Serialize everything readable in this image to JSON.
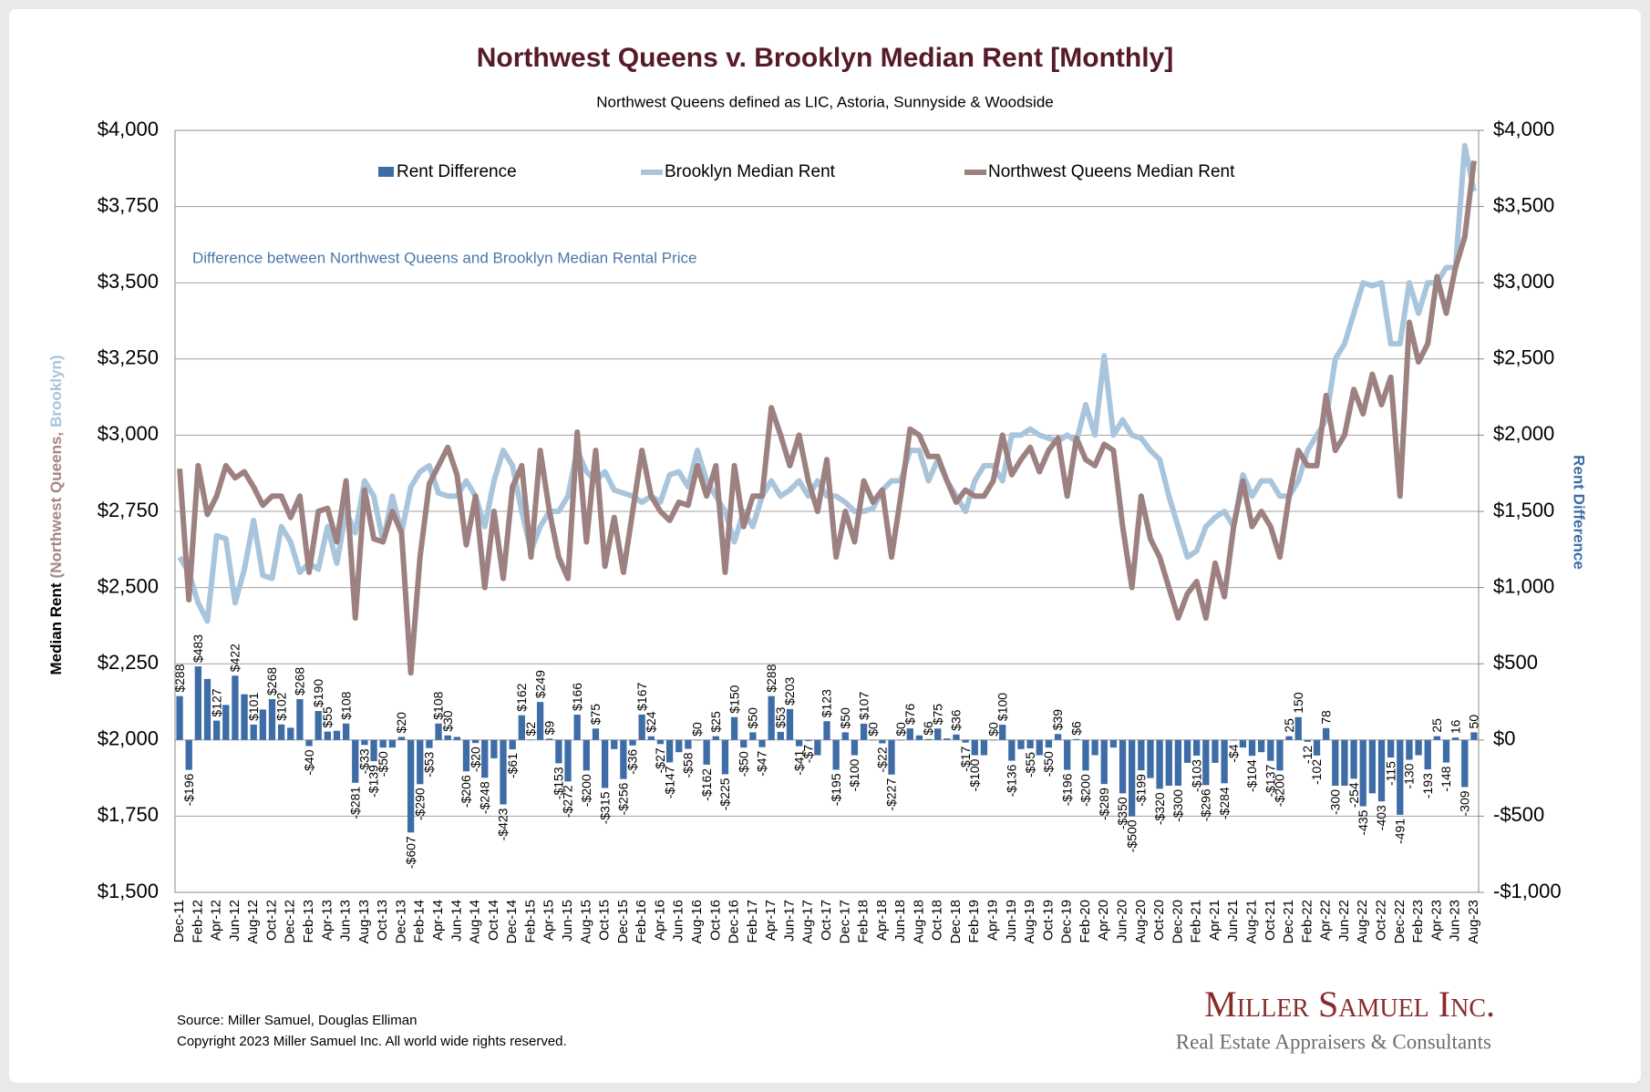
{
  "chart_data": {
    "type": "combo",
    "title": "Northwest Queens v. Brooklyn Median Rent [Monthly]",
    "subtitle": "Northwest Queens defined as LIC, Astoria, Sunnyside & Woodside",
    "annotation": "Difference between Northwest Queens and Brooklyn Median Rental Price",
    "y_label_parts": [
      "Median Rent",
      "(Northwest Queens,",
      "Brooklyn)"
    ],
    "y2_label": "Rent Difference",
    "source": "Source: Miller Samuel, Douglas Elliman",
    "copyright": "Copyright 2023 Miller Samuel Inc.  All world wide rights reserved.",
    "logo_name": "Miller Samuel Inc.",
    "logo_tagline": "Real Estate Appraisers & Consultants",
    "grid": true,
    "legend": "top",
    "ylim": [
      1500,
      4000
    ],
    "yticks": [
      {
        "value": 1500,
        "label": "$1,500"
      },
      {
        "value": 1750,
        "label": "$1,750"
      },
      {
        "value": 2000,
        "label": "$2,000"
      },
      {
        "value": 2250,
        "label": "$2,250"
      },
      {
        "value": 2500,
        "label": "$2,500"
      },
      {
        "value": 2750,
        "label": "$2,750"
      },
      {
        "value": 3000,
        "label": "$3,000"
      },
      {
        "value": 3250,
        "label": "$3,250"
      },
      {
        "value": 3500,
        "label": "$3,500"
      },
      {
        "value": 3750,
        "label": "$3,750"
      },
      {
        "value": 4000,
        "label": "$4,000"
      }
    ],
    "y2lim": [
      -1000,
      4000
    ],
    "y2ticks": [
      {
        "value": -1000,
        "label": "-$1,000"
      },
      {
        "value": -500,
        "label": "-$500"
      },
      {
        "value": 0,
        "label": "$0"
      },
      {
        "value": 500,
        "label": "$500"
      },
      {
        "value": 1000,
        "label": "$1,000"
      },
      {
        "value": 1500,
        "label": "$1,500"
      },
      {
        "value": 2000,
        "label": "$2,000"
      },
      {
        "value": 2500,
        "label": "$2,500"
      },
      {
        "value": 3000,
        "label": "$3,000"
      },
      {
        "value": 3500,
        "label": "$3,500"
      },
      {
        "value": 4000,
        "label": "$4,000"
      }
    ],
    "categories": [
      "Dec-11",
      null,
      "Feb-12",
      null,
      "Apr-12",
      null,
      "Jun-12",
      null,
      "Aug-12",
      null,
      "Oct-12",
      null,
      "Dec-12",
      null,
      "Feb-13",
      null,
      "Apr-13",
      null,
      "Jun-13",
      null,
      "Aug-13",
      null,
      "Oct-13",
      null,
      "Dec-13",
      null,
      "Feb-14",
      null,
      "Apr-14",
      null,
      "Jun-14",
      null,
      "Aug-14",
      null,
      "Oct-14",
      null,
      "Dec-14",
      null,
      "Feb-15",
      null,
      "Apr-15",
      null,
      "Jun-15",
      null,
      "Aug-15",
      null,
      "Oct-15",
      null,
      "Dec-15",
      null,
      "Feb-16",
      null,
      "Apr-16",
      null,
      "Jun-16",
      null,
      "Aug-16",
      null,
      "Oct-16",
      null,
      "Dec-16",
      null,
      "Feb-17",
      null,
      "Apr-17",
      null,
      "Jun-17",
      null,
      "Aug-17",
      null,
      "Oct-17",
      null,
      "Dec-17",
      null,
      "Feb-18",
      null,
      "Apr-18",
      null,
      "Jun-18",
      null,
      "Aug-18",
      null,
      "Oct-18",
      null,
      "Dec-18",
      null,
      "Feb-19",
      null,
      "Apr-19",
      null,
      "Jun-19",
      null,
      "Aug-19",
      null,
      "Oct-19",
      null,
      "Dec-19",
      null,
      "Feb-20",
      null,
      "Apr-20",
      null,
      "Jun-20",
      null,
      "Aug-20",
      null,
      "Oct-20",
      null,
      "Dec-20",
      null,
      "Feb-21",
      null,
      "Apr-21",
      null,
      "Jun-21",
      null,
      "Aug-21",
      null,
      "Oct-21",
      null,
      "Dec-21",
      null,
      "Feb-22",
      null,
      "Apr-22",
      null,
      "Jun-22",
      null,
      "Aug-22",
      null,
      "Oct-22",
      null,
      "Dec-22",
      null,
      "Feb-23",
      null,
      "Apr-23",
      null,
      "Jun-23",
      null,
      "Aug-23"
    ],
    "series": [
      {
        "name": "Rent Difference",
        "type": "bar",
        "axis": "y2",
        "color": "#3d6ca6",
        "values": [
          288,
          -196,
          483,
          400,
          127,
          230,
          422,
          300,
          101,
          200,
          268,
          102,
          80,
          268,
          -40,
          190,
          55,
          60,
          108,
          -281,
          -33,
          -139,
          -50,
          -50,
          20,
          -607,
          -290,
          -53,
          108,
          30,
          20,
          -206,
          -20,
          -248,
          -120,
          -423,
          -61,
          162,
          2,
          249,
          9,
          -153,
          -272,
          166,
          -200,
          75,
          -315,
          -60,
          -256,
          -36,
          167,
          24,
          -27,
          -147,
          -80,
          -58,
          0,
          -162,
          25,
          -225,
          150,
          -50,
          50,
          -47,
          288,
          53,
          203,
          -41,
          -7,
          -100,
          123,
          -195,
          50,
          -100,
          107,
          0,
          -22,
          -227,
          0,
          76,
          30,
          6,
          75,
          10,
          36,
          -17,
          -100,
          -100,
          0,
          100,
          -136,
          -60,
          -55,
          -100,
          -50,
          39,
          -196,
          6,
          -200,
          -100,
          -289,
          -50,
          -350,
          -500,
          -199,
          -250,
          -320,
          -300,
          -300,
          -150,
          -103,
          -296,
          -150,
          -284,
          -4,
          -50,
          -104,
          -80,
          -137,
          -200,
          25,
          150,
          -12,
          -102,
          78,
          -300,
          -300,
          -254,
          -435,
          -350,
          -403,
          -115,
          -491,
          -130,
          -100,
          -193,
          25,
          -148,
          16,
          -309,
          50
        ],
        "value_labels": [
          "$288",
          "-$196",
          "$483",
          null,
          "$127",
          null,
          "$422",
          null,
          "$101",
          null,
          "$268",
          "$102",
          null,
          "$268",
          "-$40",
          "$190",
          "$55",
          null,
          "$108",
          "-$281",
          "-$33",
          "-$139",
          "-$50",
          null,
          "$20",
          "-$607",
          "-$290",
          "-$53",
          "$108",
          "$30",
          null,
          "-$206",
          "-$20",
          "-$248",
          null,
          "-$423",
          "-$61",
          "$162",
          "$2",
          "$249",
          "$9",
          "-$153",
          "-$272",
          "$166",
          "-$200",
          "$75",
          "-$315",
          null,
          "-$256",
          "-$36",
          "$167",
          "$24",
          "-$27",
          "-$147",
          null,
          "-$58",
          "$0",
          "-$162",
          "$25",
          "-$225",
          "$150",
          "-$50",
          "$50",
          "-$47",
          "$288",
          "$53",
          "$203",
          "-$41",
          "-$7",
          null,
          "$123",
          "-$195",
          "$50",
          "-$100",
          "$107",
          "$0",
          "-$22",
          "-$227",
          "$0",
          "$76",
          null,
          "$6",
          "$75",
          null,
          "$36",
          "-$17",
          "-$100",
          null,
          "$0",
          "$100",
          "-$136",
          null,
          "-$55",
          null,
          "-$50",
          "$39",
          "-$196",
          "$6",
          "-$200",
          null,
          "-$289",
          null,
          "-$350",
          "-$500",
          "-$199",
          null,
          "-$320",
          null,
          "-$300",
          null,
          "-$103",
          "-$296",
          null,
          "-$284",
          "-$4",
          null,
          "-$104",
          null,
          "-$137",
          "-$200",
          "25",
          "150",
          "-12",
          "-102",
          "78",
          "-300",
          null,
          "-254",
          "-435",
          null,
          "-403",
          "-115",
          "-491",
          "-130",
          null,
          "-193",
          "25",
          "-148",
          "16",
          "-309",
          "50"
        ]
      },
      {
        "name": "Brooklyn Median Rent",
        "type": "line",
        "axis": "y",
        "color": "#a9c5dc",
        "values": [
          2600,
          2550,
          2450,
          2390,
          2670,
          2660,
          2450,
          2560,
          2720,
          2540,
          2530,
          2700,
          2650,
          2550,
          2580,
          2560,
          2700,
          2580,
          2750,
          2680,
          2850,
          2800,
          2650,
          2800,
          2680,
          2830,
          2880,
          2900,
          2810,
          2800,
          2800,
          2850,
          2800,
          2700,
          2850,
          2950,
          2900,
          2750,
          2620,
          2700,
          2750,
          2750,
          2800,
          2950,
          2880,
          2850,
          2880,
          2820,
          2810,
          2800,
          2780,
          2800,
          2780,
          2870,
          2880,
          2830,
          2950,
          2850,
          2800,
          2750,
          2650,
          2750,
          2700,
          2800,
          2850,
          2800,
          2820,
          2850,
          2800,
          2850,
          2800,
          2800,
          2780,
          2750,
          2750,
          2760,
          2820,
          2850,
          2850,
          2950,
          2950,
          2850,
          2920,
          2850,
          2800,
          2750,
          2850,
          2900,
          2900,
          2850,
          3000,
          3000,
          3020,
          3000,
          2990,
          2980,
          3000,
          2980,
          3100,
          3000,
          3260,
          3000,
          3050,
          3000,
          2990,
          2950,
          2920,
          2800,
          2700,
          2600,
          2620,
          2700,
          2730,
          2750,
          2700,
          2870,
          2800,
          2850,
          2850,
          2800,
          2800,
          2850,
          2950,
          3000,
          3050,
          3250,
          3300,
          3400,
          3500,
          3490,
          3500,
          3300,
          3300,
          3500,
          3400,
          3500,
          3500,
          3550,
          3550,
          3950,
          3800
        ]
      },
      {
        "name": "Northwest Queens Median Rent",
        "type": "line",
        "axis": "y",
        "color": "#9d8181",
        "values": [
          2890,
          2460,
          2900,
          2740,
          2800,
          2900,
          2860,
          2880,
          2830,
          2770,
          2800,
          2800,
          2730,
          2800,
          2550,
          2750,
          2760,
          2650,
          2850,
          2400,
          2820,
          2660,
          2650,
          2750,
          2680,
          2220,
          2600,
          2840,
          2900,
          2960,
          2870,
          2640,
          2800,
          2500,
          2750,
          2530,
          2830,
          2900,
          2600,
          2950,
          2750,
          2600,
          2530,
          3010,
          2650,
          2950,
          2570,
          2730,
          2550,
          2750,
          2950,
          2800,
          2750,
          2720,
          2780,
          2770,
          2900,
          2800,
          2900,
          2550,
          2900,
          2700,
          2800,
          2800,
          3090,
          3000,
          2900,
          3000,
          2850,
          2750,
          2920,
          2600,
          2750,
          2650,
          2850,
          2780,
          2820,
          2600,
          2800,
          3020,
          3000,
          2930,
          2930,
          2850,
          2780,
          2820,
          2800,
          2800,
          2850,
          3000,
          2870,
          2920,
          2960,
          2880,
          2950,
          2990,
          2800,
          2990,
          2920,
          2900,
          2970,
          2950,
          2700,
          2500,
          2800,
          2660,
          2600,
          2500,
          2400,
          2480,
          2520,
          2400,
          2580,
          2470,
          2700,
          2850,
          2700,
          2750,
          2700,
          2600,
          2800,
          2950,
          2900,
          2900,
          3130,
          2950,
          3000,
          3150,
          3070,
          3200,
          3100,
          3190,
          2800,
          3370,
          3240,
          3300,
          3520,
          3400,
          3550,
          3650,
          3900
        ]
      }
    ]
  }
}
